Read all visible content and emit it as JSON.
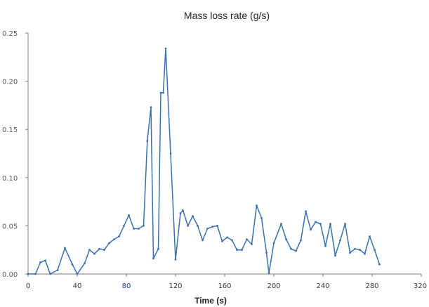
{
  "chart_data": {
    "type": "line",
    "title": "Mass loss rate (g/s)",
    "xlabel": "Time (s)",
    "ylabel": "",
    "xlim": [
      0,
      320
    ],
    "ylim": [
      0,
      0.25
    ],
    "x_ticks": [
      0,
      40,
      80,
      120,
      160,
      200,
      240,
      280,
      320
    ],
    "x_tick_labels": [
      "0",
      "40",
      "80",
      "120",
      "160",
      "200",
      "240",
      "280",
      "320"
    ],
    "y_ticks": [
      0,
      0.05,
      0.1,
      0.15,
      0.2,
      0.25
    ],
    "y_tick_labels": [
      "0.00",
      "0.05",
      "0.10",
      "0.15",
      "0.20",
      "0.25"
    ],
    "grid": false,
    "line_color": "#3a6fb0",
    "axis_color": "#7f7f7f",
    "series": [
      {
        "x": [
          0,
          6,
          10,
          14,
          18,
          24,
          30,
          36,
          40,
          46,
          50,
          54,
          58,
          62,
          66,
          70,
          74,
          78,
          82,
          86,
          90,
          94,
          97,
          100,
          102,
          106,
          108,
          110,
          112,
          116,
          120,
          124,
          126,
          130,
          134,
          138,
          142,
          146,
          150,
          154,
          158,
          162,
          166,
          170,
          174,
          178,
          182,
          186,
          190,
          194,
          196,
          200,
          206,
          210,
          214,
          218,
          222,
          226,
          230,
          234,
          238,
          242,
          246,
          250,
          254,
          258,
          262,
          266,
          270,
          274,
          278,
          282,
          286
        ],
        "y": [
          0.0,
          0.0,
          0.012,
          0.014,
          0.0,
          0.004,
          0.027,
          0.01,
          0.0,
          0.011,
          0.025,
          0.021,
          0.026,
          0.025,
          0.032,
          0.036,
          0.039,
          0.05,
          0.061,
          0.047,
          0.047,
          0.05,
          0.138,
          0.173,
          0.016,
          0.026,
          0.188,
          0.188,
          0.234,
          0.125,
          0.015,
          0.063,
          0.066,
          0.05,
          0.06,
          0.05,
          0.035,
          0.047,
          0.049,
          0.05,
          0.034,
          0.038,
          0.035,
          0.025,
          0.025,
          0.036,
          0.031,
          0.071,
          0.058,
          0.022,
          0.001,
          0.032,
          0.052,
          0.036,
          0.026,
          0.024,
          0.035,
          0.065,
          0.046,
          0.054,
          0.052,
          0.029,
          0.052,
          0.019,
          0.035,
          0.052,
          0.022,
          0.026,
          0.025,
          0.021,
          0.039,
          0.025,
          0.01
        ]
      }
    ]
  }
}
